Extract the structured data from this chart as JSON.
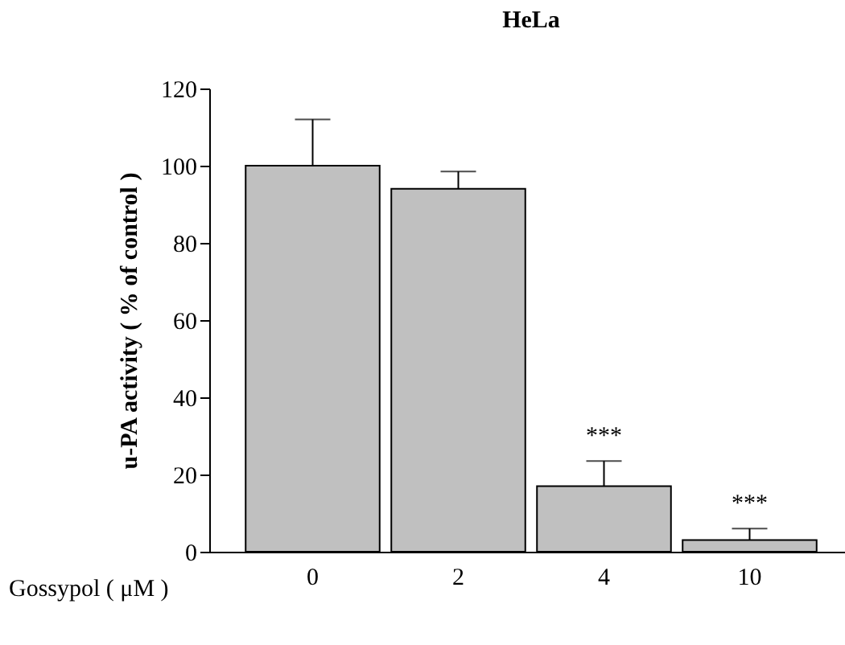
{
  "chart_data": {
    "type": "bar",
    "title": "HeLa",
    "xlabel": "Gossypol ( μM )",
    "ylabel": "u-PA activity ( % of control )",
    "categories": [
      "0",
      "2",
      "4",
      "10"
    ],
    "values": [
      100,
      94,
      17,
      3
    ],
    "errors": [
      [
        100,
        112
      ],
      [
        94,
        98.5
      ],
      [
        17,
        23.5
      ],
      [
        3,
        6
      ]
    ],
    "color": "#c0c0c0",
    "ylim": [
      0,
      120
    ],
    "yticks": [
      0,
      20,
      40,
      60,
      80,
      100,
      120
    ],
    "grid": false,
    "annotations": [
      {
        "text": "***",
        "x": "4",
        "y": 23.5
      },
      {
        "text": "***",
        "x": "10",
        "y": 6
      }
    ]
  }
}
